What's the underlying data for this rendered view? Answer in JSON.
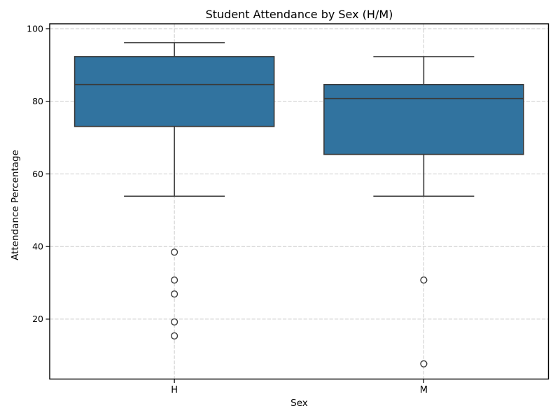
{
  "chart_data": {
    "type": "boxplot",
    "title": "Student Attendance by Sex (H/M)",
    "xlabel": "Sex",
    "ylabel": "Attendance Percentage",
    "categories": [
      "H",
      "M"
    ],
    "yticks": [
      20,
      40,
      60,
      80,
      100
    ],
    "ylim": [
      3.5,
      101.35
    ],
    "grid": {
      "visible": true,
      "style": "dashed",
      "axes": "both"
    },
    "legend": "none",
    "series": [
      {
        "category": "H",
        "whisker_low": 53.85,
        "q1": 73.08,
        "median": 84.62,
        "q3": 92.31,
        "whisker_high": 96.15,
        "outliers": [
          38.46,
          30.77,
          26.92,
          19.23,
          15.38
        ]
      },
      {
        "category": "M",
        "whisker_low": 53.85,
        "q1": 65.38,
        "median": 80.77,
        "q3": 84.62,
        "whisker_high": 92.31,
        "outliers": [
          30.77,
          7.69
        ]
      }
    ],
    "colors": {
      "box_fill": "#31739F",
      "box_edge": "#3A3A3A",
      "whisker": "#3A3A3A",
      "median": "#3A3A3A",
      "outlier_edge": "#3A3A3A",
      "outlier_fill": "#FFFFFF",
      "grid": "#CBCBCB",
      "spine": "#000000",
      "text": "#000000",
      "background": "#FFFFFF"
    }
  }
}
